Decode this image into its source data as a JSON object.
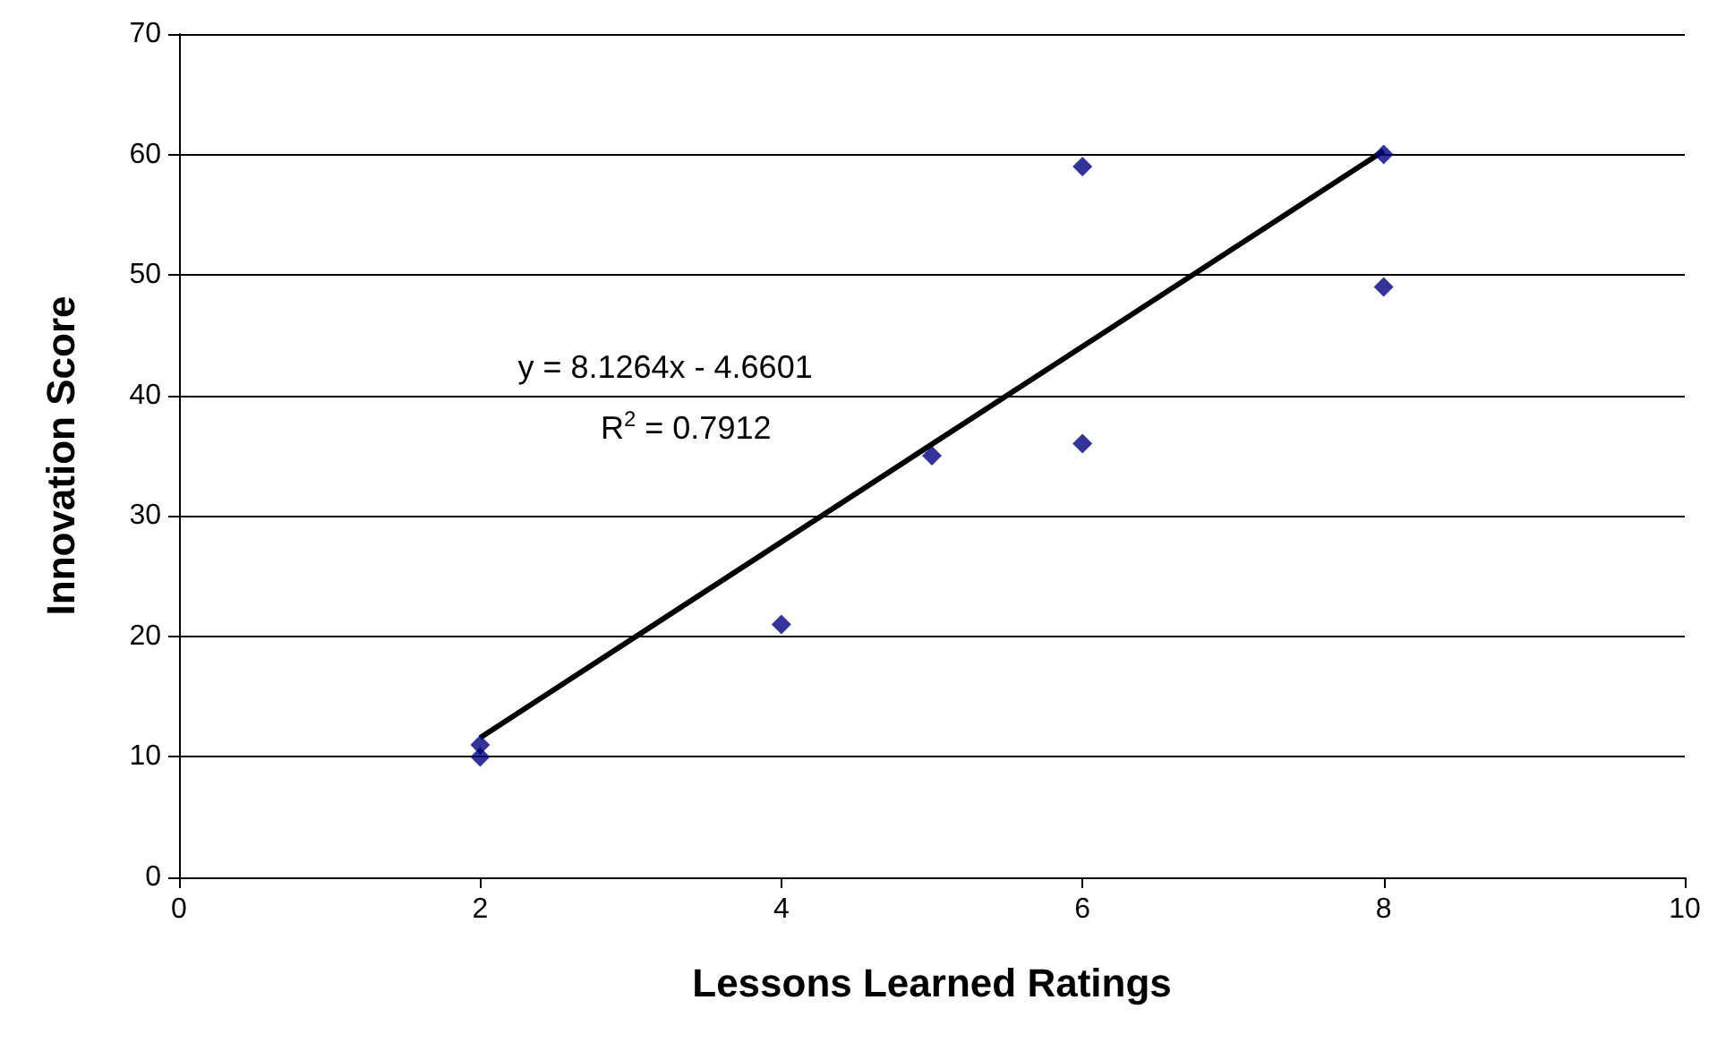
{
  "chart_data": {
    "type": "scatter",
    "xlabel": "Lessons Learned Ratings",
    "ylabel": "Innovation Score",
    "annotations": [
      "y = 8.1264x - 4.6601",
      "R$^{2}$ = 0.7912"
    ],
    "xlim": [
      0,
      10
    ],
    "xticks": [
      0,
      2,
      4,
      6,
      8,
      10
    ],
    "ylim": [
      0,
      70
    ],
    "yticks": [
      0,
      10,
      20,
      30,
      40,
      50,
      60,
      70
    ],
    "grid": "y",
    "marker": "diamond",
    "series": [
      {
        "color": "#000080",
        "x": [
          2,
          2,
          4,
          5,
          6,
          6,
          8,
          8
        ],
        "values": [
          11,
          10,
          21,
          35,
          59,
          36,
          60,
          49
        ]
      },
      {
        "type": "line",
        "marker": "none",
        "color": "#000000",
        "x": [
          2,
          8
        ],
        "values": [
          11.6,
          60.3
        ]
      }
    ]
  }
}
